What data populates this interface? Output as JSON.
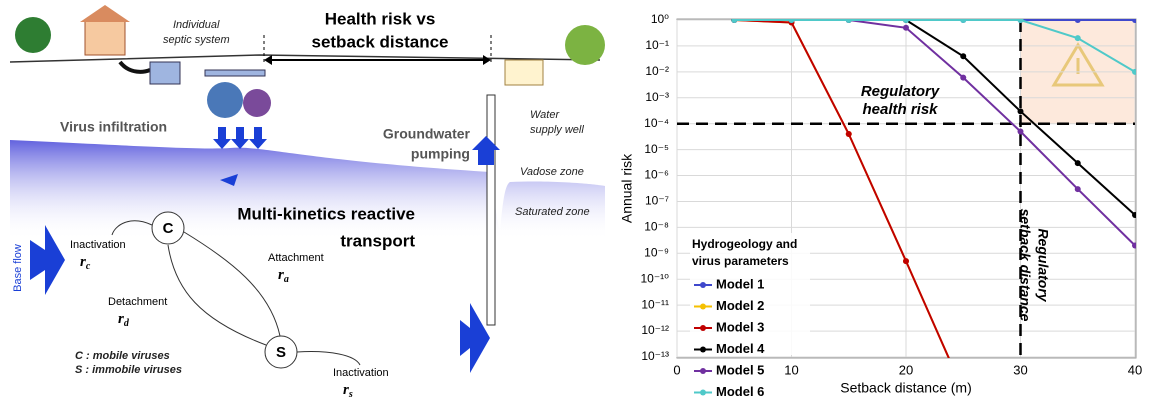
{
  "diagram": {
    "septic": [
      "Individual",
      "septic system"
    ],
    "headline": [
      "Health risk vs",
      "setback distance"
    ],
    "well": [
      "Water",
      "supply well"
    ],
    "infiltration": "Virus infiltration",
    "pumping": [
      "Groundwater",
      "pumping"
    ],
    "vadose": "Vadose zone",
    "saturated": "Saturated zone",
    "base_flow": "Base flow",
    "transport": [
      "Multi-kinetics reactive",
      "transport"
    ],
    "node_c": "C",
    "node_s": "S",
    "inactivation_c": {
      "label": "Inactivation",
      "symbol": "r",
      "subscript": "c"
    },
    "attachment": {
      "label": "Attachment",
      "symbol": "r",
      "subscript": "a"
    },
    "detachment": {
      "label": "Detachment",
      "symbol": "r",
      "subscript": "d"
    },
    "inactivation_s": {
      "label": "Inactivation",
      "symbol": "r",
      "subscript": "s"
    },
    "legend_c": "C : mobile viruses",
    "legend_s": "S : immobile viruses"
  },
  "chart_data": {
    "type": "line",
    "x_label": "Setback distance (m)",
    "y_label": "Annual risk",
    "legend_title": [
      "Hydrogeology and",
      "virus parameters"
    ],
    "x": [
      5,
      10,
      15,
      20,
      25,
      30,
      35,
      40
    ],
    "series": [
      {
        "name": "Model 1",
        "color": "#3f48cc",
        "values": [
          1,
          1,
          1,
          1,
          1,
          1,
          1,
          1
        ]
      },
      {
        "name": "Model 2",
        "color": "#f5c000",
        "values": [
          1,
          0.8,
          4e-05,
          5e-10,
          5e-15,
          null,
          null,
          null
        ]
      },
      {
        "name": "Model 3",
        "color": "#c00000",
        "values": [
          1,
          0.8,
          4e-05,
          5e-10,
          5e-15,
          null,
          null,
          null
        ]
      },
      {
        "name": "Model 4",
        "color": "#000000",
        "values": [
          1,
          1,
          1,
          1,
          0.04,
          0.0003,
          3e-06,
          3e-08
        ]
      },
      {
        "name": "Model 5",
        "color": "#7030a0",
        "values": [
          1,
          1,
          1,
          0.5,
          0.006,
          5e-05,
          3e-07,
          2e-09
        ]
      },
      {
        "name": "Model 6",
        "color": "#4fc9c9",
        "values": [
          1,
          1,
          1,
          1,
          1,
          1,
          0.2,
          0.01
        ]
      }
    ],
    "xlim": [
      0,
      40
    ],
    "xticks": [
      0,
      10,
      20,
      30,
      40
    ],
    "ylim": [
      1e-13,
      1
    ],
    "yticks": [
      {
        "value": 1,
        "label": "10⁰"
      },
      {
        "value": 0.1,
        "label": "10⁻¹"
      },
      {
        "value": 0.01,
        "label": "10⁻²"
      },
      {
        "value": 0.001,
        "label": "10⁻³"
      },
      {
        "value": 0.0001,
        "label": "10⁻⁴"
      },
      {
        "value": 1e-05,
        "label": "10⁻⁵"
      },
      {
        "value": 1e-06,
        "label": "10⁻⁶"
      },
      {
        "value": 1e-07,
        "label": "10⁻⁷"
      },
      {
        "value": 1e-08,
        "label": "10⁻⁸"
      },
      {
        "value": 1e-09,
        "label": "10⁻⁹"
      },
      {
        "value": 1e-10,
        "label": "10⁻¹⁰"
      },
      {
        "value": 1e-11,
        "label": "10⁻¹¹"
      },
      {
        "value": 1e-12,
        "label": "10⁻¹²"
      },
      {
        "value": 1e-13,
        "label": "10⁻¹³"
      }
    ],
    "log_y": true,
    "grid": true,
    "risk_threshold": {
      "value": 0.0001,
      "label": [
        "Regulatory",
        "health risk"
      ]
    },
    "setback_threshold": {
      "value": 30,
      "label": [
        "Regulatory",
        "setback distance"
      ]
    }
  }
}
